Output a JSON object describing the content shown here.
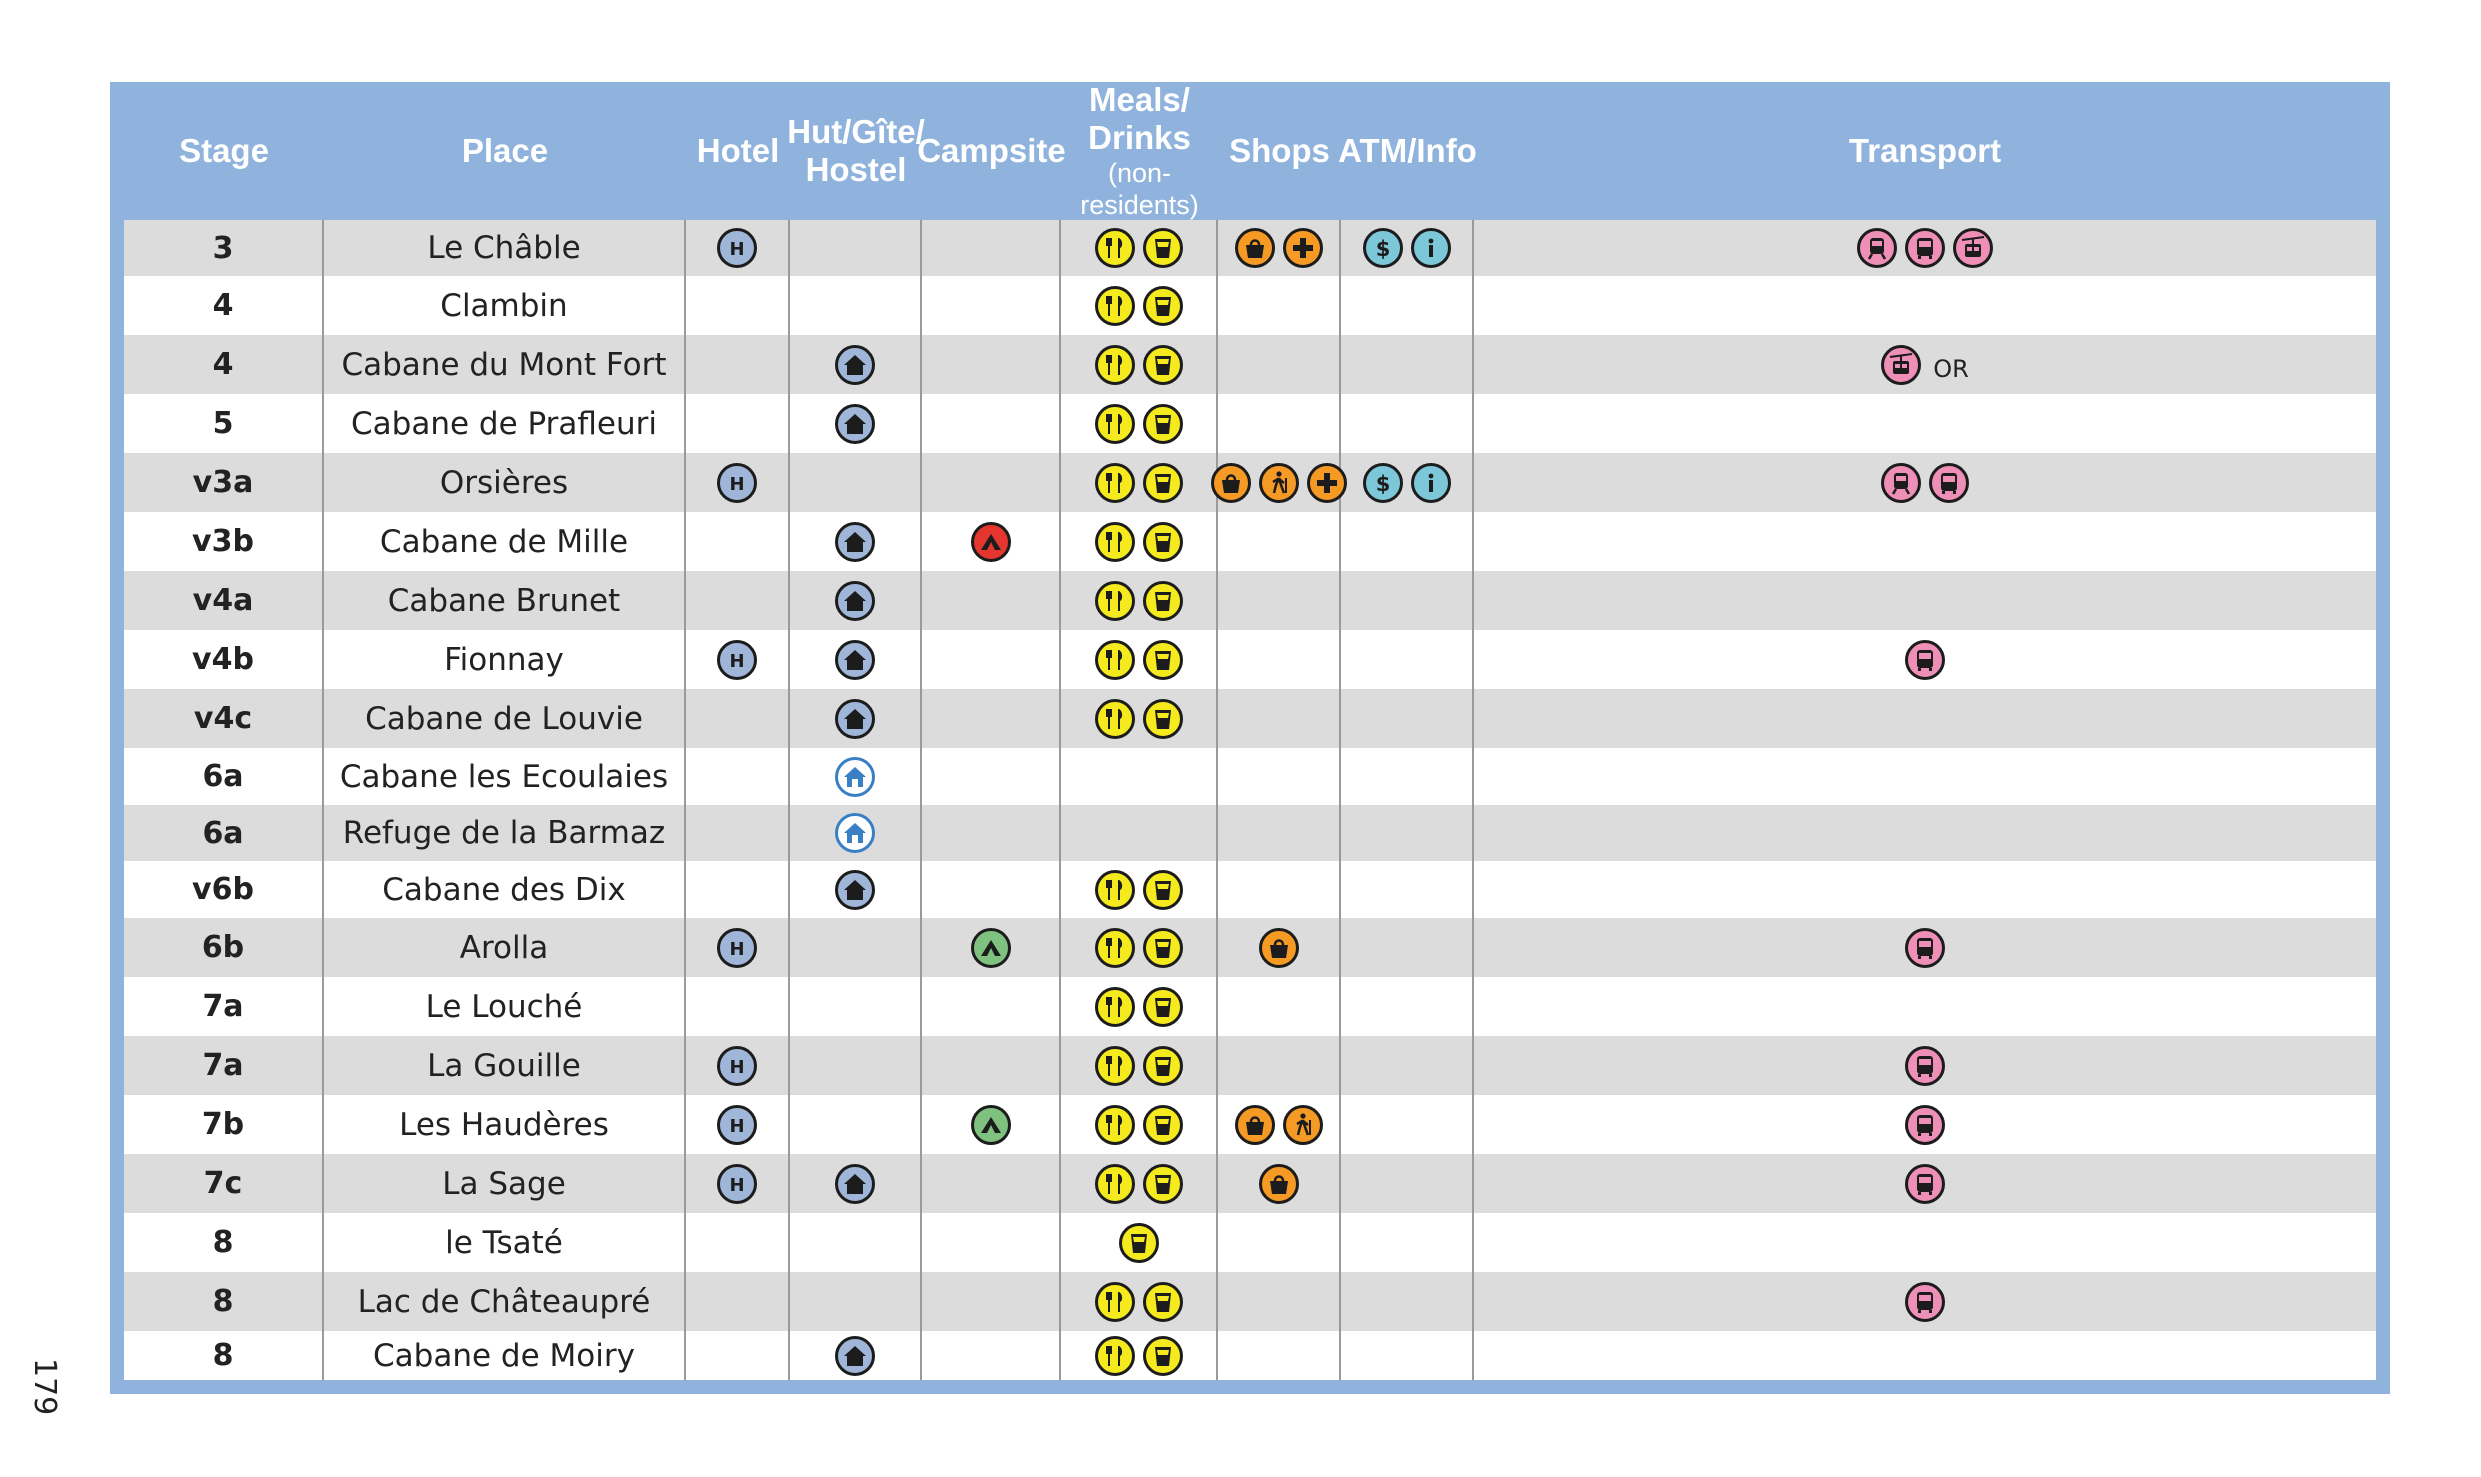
{
  "page_number": "179",
  "headers": [
    {
      "key": "stage",
      "label": "Stage",
      "sub": ""
    },
    {
      "key": "place",
      "label": "Place",
      "sub": ""
    },
    {
      "key": "hotel",
      "label": "Hotel",
      "sub": ""
    },
    {
      "key": "hut",
      "label": "Hut/Gîte/\nHostel",
      "sub": ""
    },
    {
      "key": "camp",
      "label": "Campsite",
      "sub": ""
    },
    {
      "key": "meals",
      "label": "Meals/\nDrinks",
      "sub": "(non-residents)"
    },
    {
      "key": "shops",
      "label": "Shops",
      "sub": ""
    },
    {
      "key": "atm",
      "label": "ATM/Info",
      "sub": ""
    },
    {
      "key": "transport",
      "label": "Transport",
      "sub": ""
    }
  ],
  "colors": {
    "header_bg": "#8fb3dd",
    "row_alt": "#dcdcdc",
    "hotel": "#9fb6d8",
    "hut": "#9fb6d8",
    "camp_red": "#e4352f",
    "camp_green": "#7fc27f",
    "meal": "#f5ea1e",
    "shop": "#f59a25",
    "atm": "#7dc8d8",
    "transport": "#ee8fb8"
  },
  "rows": [
    {
      "stage": "3",
      "place": "Le Châble",
      "hotel": [
        "hotel-icon"
      ],
      "hut": [],
      "camp": [],
      "meals": [
        "restaurant-icon",
        "drink-icon"
      ],
      "shops": [
        "shop-icon",
        "pharmacy-icon"
      ],
      "atm": [
        "atm-icon",
        "info-icon"
      ],
      "transport": [
        "train-icon",
        "bus-icon",
        "cable-car-icon"
      ],
      "transport_note": ""
    },
    {
      "stage": "4",
      "place": "Clambin",
      "hotel": [],
      "hut": [],
      "camp": [],
      "meals": [
        "restaurant-icon",
        "drink-icon"
      ],
      "shops": [],
      "atm": [],
      "transport": [],
      "transport_note": ""
    },
    {
      "stage": "4",
      "place": "Cabane du Mont Fort",
      "hotel": [],
      "hut": [
        "hut-icon"
      ],
      "camp": [],
      "meals": [
        "restaurant-icon",
        "drink-icon"
      ],
      "shops": [],
      "atm": [],
      "transport": [
        "cable-car-icon"
      ],
      "transport_note": "OR"
    },
    {
      "stage": "5",
      "place": "Cabane de Prafleuri",
      "hotel": [],
      "hut": [
        "hut-icon"
      ],
      "camp": [],
      "meals": [
        "restaurant-icon",
        "drink-icon"
      ],
      "shops": [],
      "atm": [],
      "transport": [],
      "transport_note": ""
    },
    {
      "stage": "v3a",
      "place": "Orsières",
      "hotel": [
        "hotel-icon"
      ],
      "hut": [],
      "camp": [],
      "meals": [
        "restaurant-icon",
        "drink-icon"
      ],
      "shops": [
        "shop-icon",
        "hiking-shop-icon",
        "pharmacy-icon"
      ],
      "atm": [
        "atm-icon",
        "info-icon"
      ],
      "transport": [
        "train-icon",
        "bus-icon"
      ],
      "transport_note": ""
    },
    {
      "stage": "v3b",
      "place": "Cabane de Mille",
      "hotel": [],
      "hut": [
        "hut-icon"
      ],
      "camp": [
        "campsite-red-icon"
      ],
      "meals": [
        "restaurant-icon",
        "drink-icon"
      ],
      "shops": [],
      "atm": [],
      "transport": [],
      "transport_note": ""
    },
    {
      "stage": "v4a",
      "place": "Cabane Brunet",
      "hotel": [],
      "hut": [
        "hut-icon"
      ],
      "camp": [],
      "meals": [
        "restaurant-icon",
        "drink-icon"
      ],
      "shops": [],
      "atm": [],
      "transport": [],
      "transport_note": ""
    },
    {
      "stage": "v4b",
      "place": "Fionnay",
      "hotel": [
        "hotel-icon"
      ],
      "hut": [
        "hut-icon"
      ],
      "camp": [],
      "meals": [
        "restaurant-icon",
        "drink-icon"
      ],
      "shops": [],
      "atm": [],
      "transport": [
        "bus-icon"
      ],
      "transport_note": ""
    },
    {
      "stage": "v4c",
      "place": "Cabane de Louvie",
      "hotel": [],
      "hut": [
        "hut-icon"
      ],
      "camp": [],
      "meals": [
        "restaurant-icon",
        "drink-icon"
      ],
      "shops": [],
      "atm": [],
      "transport": [],
      "transport_note": ""
    },
    {
      "stage": "6a",
      "place": "Cabane les Ecoulaies",
      "hotel": [],
      "hut": [
        "unstaffed-hut-icon"
      ],
      "camp": [],
      "meals": [],
      "shops": [],
      "atm": [],
      "transport": [],
      "transport_note": ""
    },
    {
      "stage": "6a",
      "place": "Refuge de la Barmaz",
      "hotel": [],
      "hut": [
        "unstaffed-hut-icon"
      ],
      "camp": [],
      "meals": [],
      "shops": [],
      "atm": [],
      "transport": [],
      "transport_note": ""
    },
    {
      "stage": "v6b",
      "place": "Cabane des Dix",
      "hotel": [],
      "hut": [
        "hut-icon"
      ],
      "camp": [],
      "meals": [
        "restaurant-icon",
        "drink-icon"
      ],
      "shops": [],
      "atm": [],
      "transport": [],
      "transport_note": ""
    },
    {
      "stage": "6b",
      "place": "Arolla",
      "hotel": [
        "hotel-icon"
      ],
      "hut": [],
      "camp": [
        "campsite-green-icon"
      ],
      "meals": [
        "restaurant-icon",
        "drink-icon"
      ],
      "shops": [
        "shop-icon"
      ],
      "atm": [],
      "transport": [
        "bus-icon"
      ],
      "transport_note": ""
    },
    {
      "stage": "7a",
      "place": "Le Louché",
      "hotel": [],
      "hut": [],
      "camp": [],
      "meals": [
        "restaurant-icon",
        "drink-icon"
      ],
      "shops": [],
      "atm": [],
      "transport": [],
      "transport_note": ""
    },
    {
      "stage": "7a",
      "place": "La Gouille",
      "hotel": [
        "hotel-icon"
      ],
      "hut": [],
      "camp": [],
      "meals": [
        "restaurant-icon",
        "drink-icon"
      ],
      "shops": [],
      "atm": [],
      "transport": [
        "bus-icon"
      ],
      "transport_note": ""
    },
    {
      "stage": "7b",
      "place": "Les Haudères",
      "hotel": [
        "hotel-icon"
      ],
      "hut": [],
      "camp": [
        "campsite-green-icon"
      ],
      "meals": [
        "restaurant-icon",
        "drink-icon"
      ],
      "shops": [
        "shop-icon",
        "hiking-shop-icon"
      ],
      "atm": [],
      "transport": [
        "bus-icon"
      ],
      "transport_note": ""
    },
    {
      "stage": "7c",
      "place": "La Sage",
      "hotel": [
        "hotel-icon"
      ],
      "hut": [
        "hut-icon"
      ],
      "camp": [],
      "meals": [
        "restaurant-icon",
        "drink-icon"
      ],
      "shops": [
        "shop-icon"
      ],
      "atm": [],
      "transport": [
        "bus-icon"
      ],
      "transport_note": ""
    },
    {
      "stage": "8",
      "place": "le Tsaté",
      "hotel": [],
      "hut": [],
      "camp": [],
      "meals": [
        "drink-icon"
      ],
      "shops": [],
      "atm": [],
      "transport": [],
      "transport_note": ""
    },
    {
      "stage": "8",
      "place": "Lac de Châteaupré",
      "hotel": [],
      "hut": [],
      "camp": [],
      "meals": [
        "restaurant-icon",
        "drink-icon"
      ],
      "shops": [],
      "atm": [],
      "transport": [
        "bus-icon"
      ],
      "transport_note": ""
    },
    {
      "stage": "8",
      "place": "Cabane de Moiry",
      "hotel": [],
      "hut": [
        "hut-icon"
      ],
      "camp": [],
      "meals": [
        "restaurant-icon",
        "drink-icon"
      ],
      "shops": [],
      "atm": [],
      "transport": [],
      "transport_note": ""
    }
  ]
}
